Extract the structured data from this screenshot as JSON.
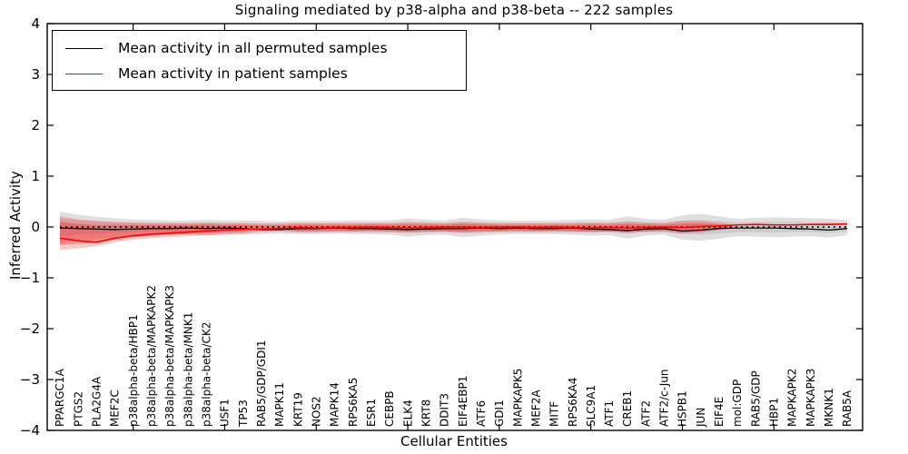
{
  "chart_data": {
    "type": "line",
    "title": "Signaling mediated by p38-alpha and p38-beta -- 222 samples",
    "xlabel": "Cellular Entities",
    "ylabel": "Inferred Activity",
    "ylim": [
      -4,
      4
    ],
    "ytick_values": [
      4,
      3,
      2,
      1,
      0,
      -1,
      -2,
      -3,
      -4
    ],
    "ytick_labels": [
      "4",
      "3",
      "2",
      "1",
      "0",
      "−1",
      "−2",
      "−3",
      "−4"
    ],
    "xtick_major_indices": [
      4,
      9,
      14,
      19,
      24,
      29,
      34,
      39
    ],
    "grid": false,
    "legend_position": "upper left",
    "categories": [
      "PPARGC1A",
      "PTGS2",
      "PLA2G4A",
      "MEF2C",
      "p38alpha-beta/HBP1",
      "p38alpha-beta/MAPKAPK2",
      "p38alpha-beta/MAPKAPK3",
      "p38alpha-beta/MNK1",
      "p38alpha-beta/CK2",
      "USF1",
      "TP53",
      "RAB5/GDP/GDI1",
      "MAPK11",
      "KRT19",
      "NOS2",
      "MAPK14",
      "RPS6KA5",
      "ESR1",
      "CEBPB",
      "ELK4",
      "KRT8",
      "DDIT3",
      "EIF4EBP1",
      "ATF6",
      "GDI1",
      "MAPKAPK5",
      "MEF2A",
      "MITF",
      "RPS6KA4",
      "SLC9A1",
      "ATF1",
      "CREB1",
      "ATF2",
      "ATF2/c-Jun",
      "HSPB1",
      "JUN",
      "EIF4E",
      "mol:GDP",
      "RAB5/GDP",
      "HBP1",
      "MAPKAPK2",
      "MAPKAPK3",
      "MKNK1",
      "RAB5A"
    ],
    "series": [
      {
        "name": "Mean activity in all permuted samples",
        "color": "#000000",
        "style": "solid",
        "width": 1.3,
        "values": [
          -0.02,
          -0.03,
          -0.04,
          -0.05,
          -0.04,
          -0.03,
          -0.03,
          -0.02,
          -0.03,
          -0.02,
          -0.03,
          -0.05,
          -0.05,
          -0.03,
          -0.03,
          -0.02,
          -0.03,
          -0.03,
          -0.04,
          -0.05,
          -0.04,
          -0.03,
          -0.03,
          -0.02,
          -0.03,
          -0.02,
          -0.03,
          -0.03,
          -0.02,
          -0.04,
          -0.05,
          -0.07,
          -0.04,
          -0.03,
          -0.08,
          -0.06,
          -0.03,
          -0.02,
          -0.02,
          -0.02,
          -0.03,
          -0.04,
          -0.06,
          -0.03
        ]
      },
      {
        "name": "Mean activity in patient samples",
        "color": "#ff0000",
        "style": "solid",
        "width": 1.6,
        "values": [
          -0.22,
          -0.27,
          -0.3,
          -0.22,
          -0.17,
          -0.14,
          -0.12,
          -0.1,
          -0.08,
          -0.06,
          -0.04,
          -0.04,
          -0.03,
          -0.01,
          -0.02,
          -0.01,
          -0.01,
          0.0,
          -0.01,
          -0.02,
          -0.01,
          0.0,
          0.0,
          -0.01,
          0.0,
          0.0,
          -0.01,
          0.0,
          -0.01,
          -0.02,
          -0.01,
          -0.02,
          -0.01,
          0.0,
          -0.01,
          0.01,
          0.02,
          0.04,
          0.05,
          0.04,
          0.04,
          0.05,
          0.05,
          0.06
        ]
      }
    ],
    "reference_line": {
      "y": 0,
      "color": "#000000",
      "style": "dotted"
    },
    "bands": [
      {
        "name": "permuted-range-outer",
        "color": "#808080",
        "opacity": 0.25,
        "upper": [
          0.3,
          0.24,
          0.2,
          0.17,
          0.15,
          0.14,
          0.13,
          0.13,
          0.14,
          0.13,
          0.13,
          0.12,
          0.11,
          0.12,
          0.12,
          0.12,
          0.13,
          0.12,
          0.13,
          0.17,
          0.14,
          0.13,
          0.18,
          0.15,
          0.13,
          0.13,
          0.13,
          0.13,
          0.14,
          0.15,
          0.14,
          0.21,
          0.16,
          0.14,
          0.23,
          0.26,
          0.21,
          0.16,
          0.18,
          0.19,
          0.18,
          0.17,
          0.16,
          0.14
        ],
        "lower": [
          -0.32,
          -0.27,
          -0.24,
          -0.21,
          -0.19,
          -0.17,
          -0.16,
          -0.15,
          -0.16,
          -0.15,
          -0.15,
          -0.14,
          -0.13,
          -0.14,
          -0.14,
          -0.13,
          -0.14,
          -0.14,
          -0.15,
          -0.19,
          -0.16,
          -0.15,
          -0.2,
          -0.17,
          -0.15,
          -0.14,
          -0.14,
          -0.14,
          -0.15,
          -0.17,
          -0.16,
          -0.23,
          -0.17,
          -0.15,
          -0.25,
          -0.27,
          -0.23,
          -0.18,
          -0.19,
          -0.2,
          -0.19,
          -0.18,
          -0.21,
          -0.16
        ]
      },
      {
        "name": "permuted-range-inner",
        "color": "#808080",
        "opacity": 0.2,
        "upper": [
          0.17,
          0.13,
          0.11,
          0.09,
          0.08,
          0.08,
          0.07,
          0.07,
          0.08,
          0.07,
          0.07,
          0.06,
          0.06,
          0.07,
          0.07,
          0.07,
          0.07,
          0.07,
          0.07,
          0.09,
          0.08,
          0.07,
          0.1,
          0.08,
          0.07,
          0.07,
          0.07,
          0.07,
          0.08,
          0.08,
          0.08,
          0.12,
          0.09,
          0.08,
          0.13,
          0.14,
          0.12,
          0.09,
          0.1,
          0.1,
          0.1,
          0.09,
          0.09,
          0.08
        ],
        "lower": [
          -0.18,
          -0.15,
          -0.13,
          -0.12,
          -0.1,
          -0.09,
          -0.09,
          -0.08,
          -0.09,
          -0.08,
          -0.08,
          -0.07,
          -0.07,
          -0.08,
          -0.08,
          -0.07,
          -0.08,
          -0.08,
          -0.08,
          -0.1,
          -0.09,
          -0.08,
          -0.11,
          -0.09,
          -0.08,
          -0.08,
          -0.08,
          -0.08,
          -0.08,
          -0.09,
          -0.09,
          -0.13,
          -0.09,
          -0.08,
          -0.14,
          -0.15,
          -0.13,
          -0.1,
          -0.1,
          -0.11,
          -0.1,
          -0.1,
          -0.12,
          -0.09
        ]
      },
      {
        "name": "patient-range-outer",
        "color": "#ff0000",
        "opacity": 0.22,
        "upper": [
          0.21,
          0.15,
          0.12,
          0.1,
          0.09,
          0.08,
          0.08,
          0.08,
          0.09,
          0.08,
          0.08,
          0.07,
          0.07,
          0.08,
          0.08,
          0.08,
          0.08,
          0.08,
          0.08,
          0.1,
          0.09,
          0.08,
          0.1,
          0.09,
          0.08,
          0.08,
          0.08,
          0.08,
          0.08,
          0.09,
          0.08,
          0.1,
          0.09,
          0.08,
          0.12,
          0.12,
          0.08,
          0.04,
          0.05,
          0.04,
          0.04,
          0.05,
          0.05,
          0.06
        ],
        "lower": [
          -0.45,
          -0.42,
          -0.38,
          -0.3,
          -0.25,
          -0.22,
          -0.2,
          -0.18,
          -0.17,
          -0.15,
          -0.13,
          -0.1,
          -0.09,
          -0.11,
          -0.11,
          -0.1,
          -0.1,
          -0.1,
          -0.11,
          -0.12,
          -0.11,
          -0.1,
          -0.12,
          -0.11,
          -0.1,
          -0.1,
          -0.1,
          -0.1,
          -0.1,
          -0.11,
          -0.1,
          -0.12,
          -0.1,
          -0.1,
          -0.13,
          -0.11,
          -0.06,
          0.04,
          0.05,
          0.04,
          0.04,
          0.05,
          0.05,
          0.06
        ]
      },
      {
        "name": "patient-range-inner",
        "color": "#ff0000",
        "opacity": 0.3,
        "upper": [
          0.1,
          0.06,
          0.04,
          0.04,
          0.04,
          0.04,
          0.04,
          0.04,
          0.05,
          0.04,
          0.04,
          0.03,
          0.03,
          0.04,
          0.04,
          0.04,
          0.04,
          0.05,
          0.04,
          0.05,
          0.05,
          0.04,
          0.06,
          0.05,
          0.04,
          0.04,
          0.04,
          0.04,
          0.04,
          0.05,
          0.04,
          0.06,
          0.05,
          0.04,
          0.07,
          0.07,
          0.05,
          0.04,
          0.05,
          0.04,
          0.04,
          0.05,
          0.05,
          0.06
        ],
        "lower": [
          -0.35,
          -0.33,
          -0.31,
          -0.25,
          -0.2,
          -0.17,
          -0.15,
          -0.14,
          -0.13,
          -0.11,
          -0.1,
          -0.05,
          -0.05,
          -0.08,
          -0.08,
          -0.08,
          -0.08,
          -0.07,
          -0.08,
          -0.09,
          -0.08,
          -0.08,
          -0.09,
          -0.08,
          -0.08,
          -0.07,
          -0.08,
          -0.07,
          -0.08,
          -0.09,
          -0.08,
          -0.09,
          -0.08,
          -0.07,
          -0.1,
          -0.09,
          -0.04,
          0.04,
          0.05,
          0.04,
          0.04,
          0.05,
          0.05,
          0.06
        ]
      }
    ]
  },
  "legend": {
    "items": [
      {
        "label": "Mean activity in all permuted samples",
        "color": "#000000"
      },
      {
        "label": "Mean activity in patient samples",
        "color": "#ff0000"
      }
    ]
  }
}
